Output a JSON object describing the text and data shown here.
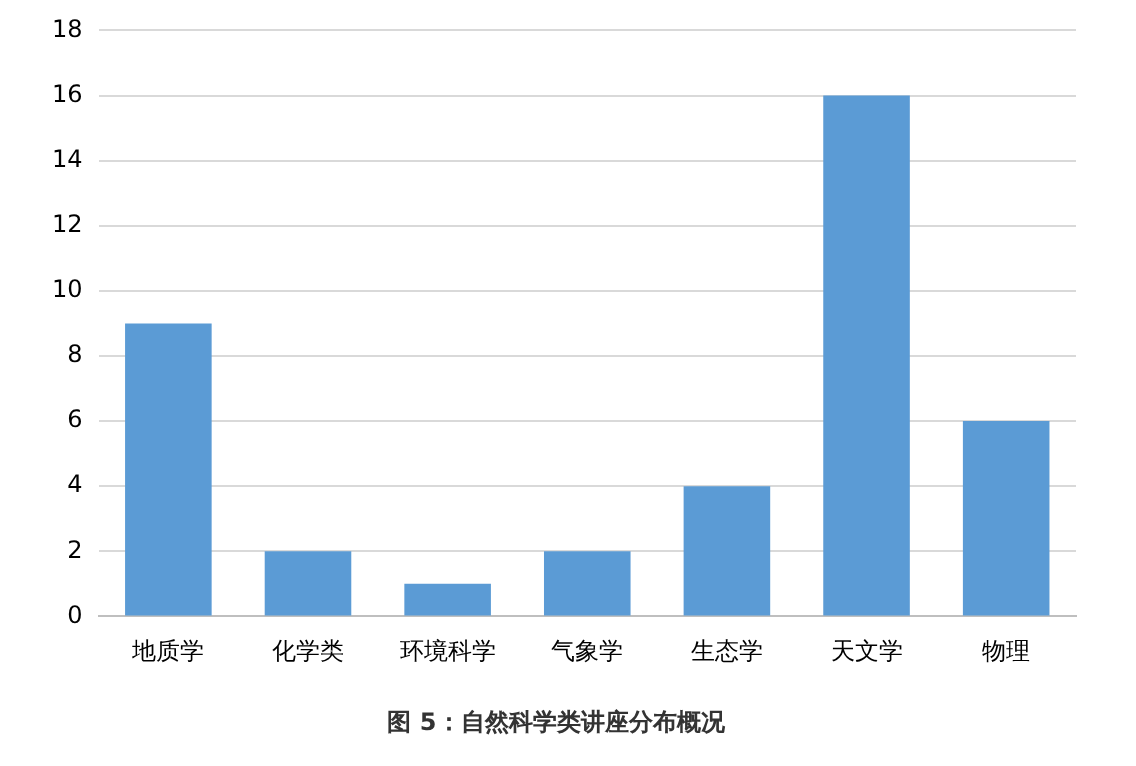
{
  "chart_data": {
    "type": "bar",
    "title": "图 5：自然科学类讲座分布概况",
    "categories": [
      "地质学",
      "化学类",
      "环境科学",
      "气象学",
      "生态学",
      "天文学",
      "物理"
    ],
    "values": [
      9,
      2,
      1,
      2,
      4,
      16,
      6
    ],
    "color": "#5b9bd5",
    "ylim": [
      0,
      18
    ],
    "yticks": [
      0,
      2,
      4,
      6,
      8,
      10,
      12,
      14,
      16,
      18
    ],
    "grid": "y"
  }
}
